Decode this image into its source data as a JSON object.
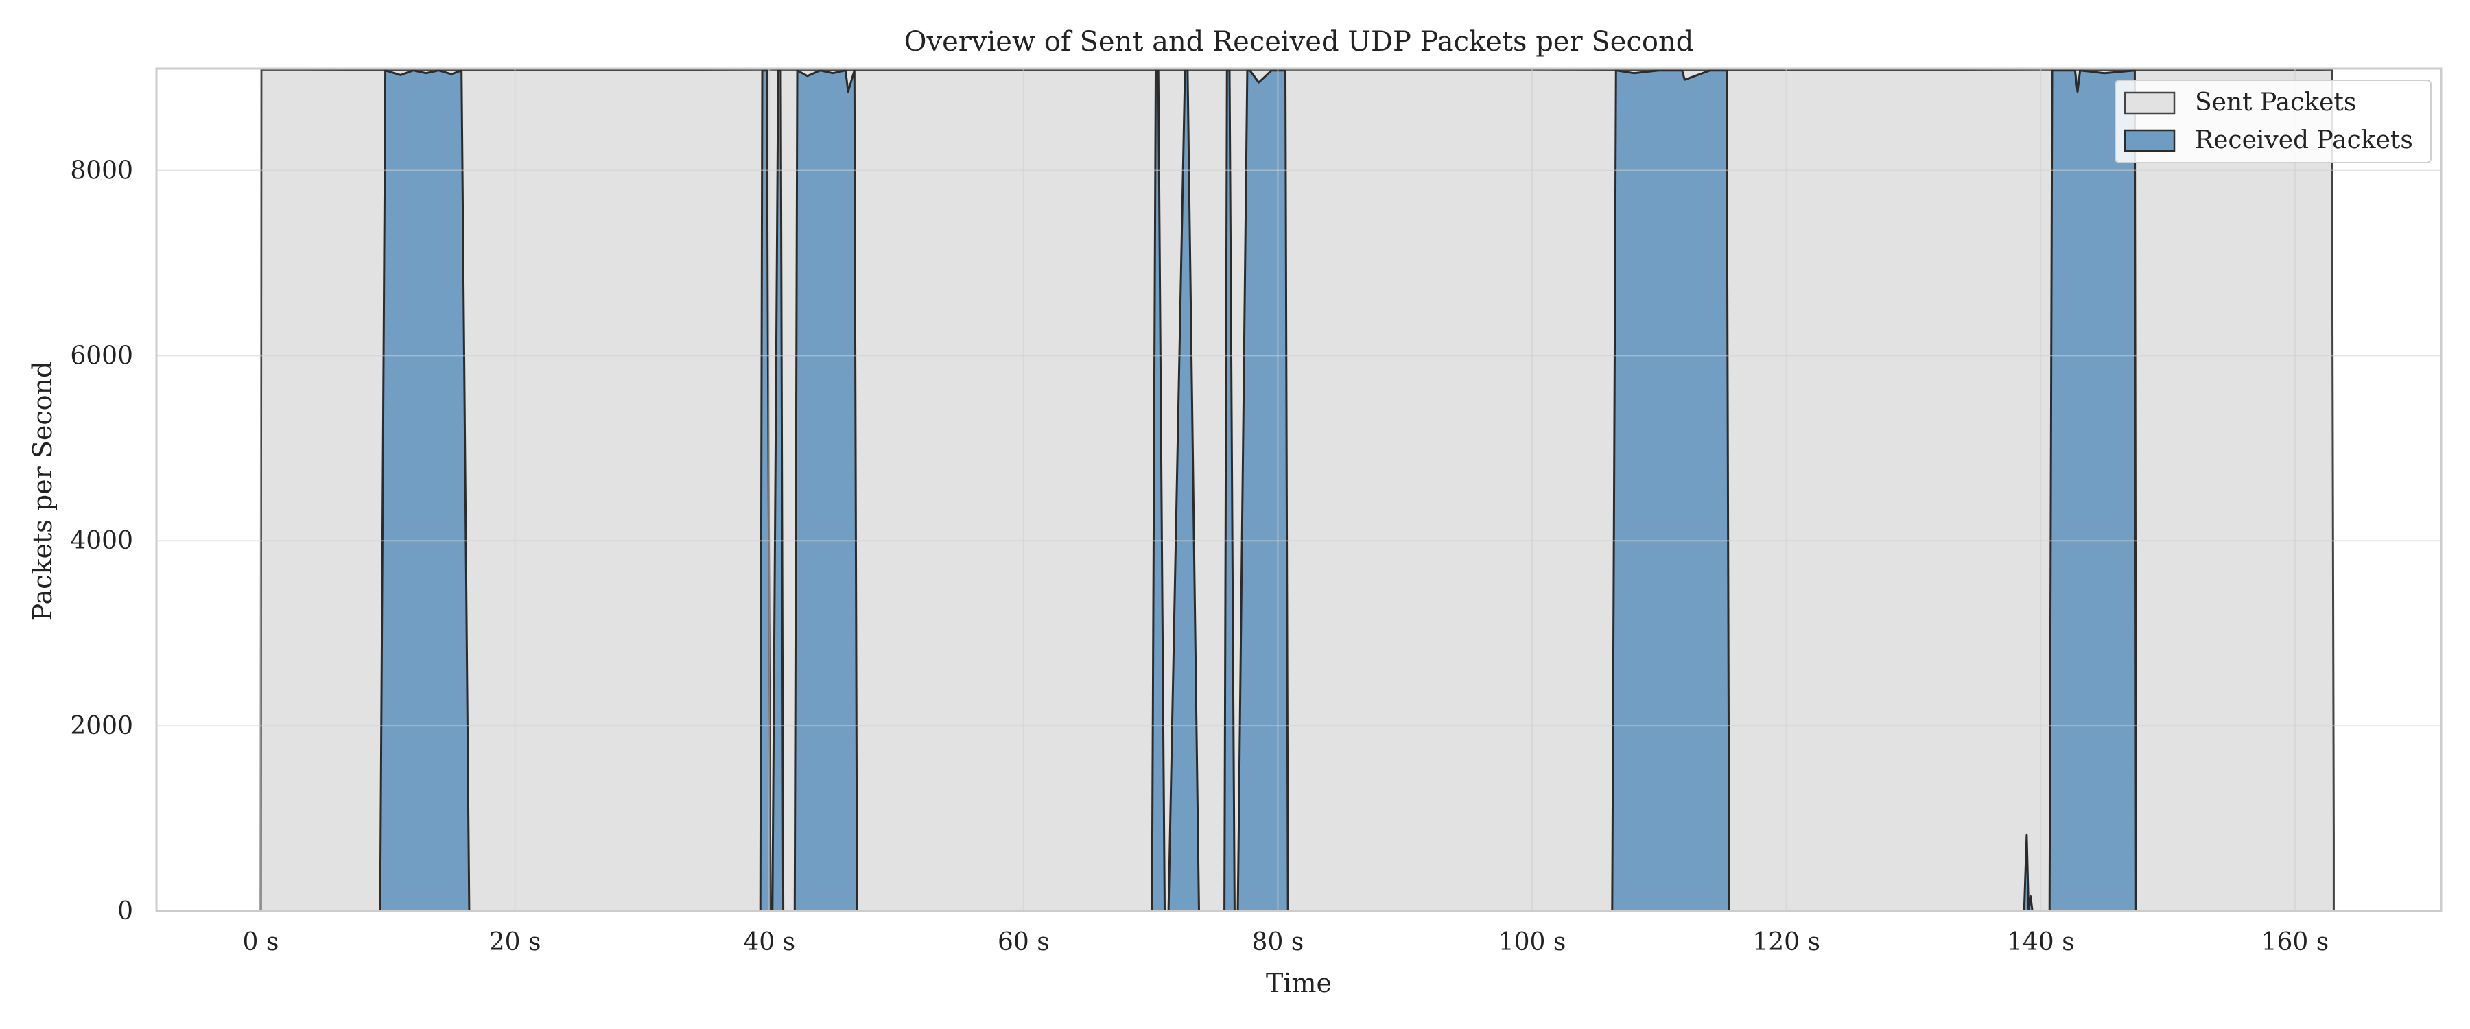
{
  "chart_data": {
    "type": "area",
    "title": "Overview of Sent and Received UDP Packets per Second",
    "xlabel": "Time",
    "ylabel": "Packets per Second",
    "xlim": [
      -8.2,
      171.5
    ],
    "ylim": [
      0,
      9100
    ],
    "xticks": [
      0,
      20,
      40,
      60,
      80,
      100,
      120,
      140,
      160
    ],
    "xtick_labels": [
      "0 s",
      "20 s",
      "40 s",
      "60 s",
      "80 s",
      "100 s",
      "120 s",
      "140 s",
      "160 s"
    ],
    "yticks": [
      0,
      2000,
      4000,
      6000,
      8000
    ],
    "ytick_labels": [
      "0",
      "2000",
      "4000",
      "6000",
      "8000"
    ],
    "grid": true,
    "legend_position": "top-right",
    "series": [
      {
        "name": "Sent Packets",
        "color": "#e2e2e2",
        "edge_color": "#444444",
        "x": [
          0,
          0.05,
          20,
          40,
          60,
          80,
          100,
          120,
          140,
          160,
          162.9,
          163.05
        ],
        "values": [
          0,
          9090,
          9085,
          9090,
          9085,
          9090,
          9090,
          9085,
          9090,
          9085,
          9090,
          800
        ]
      },
      {
        "name": "Received Packets",
        "color": "#6f9cc3",
        "edge_color": "#2b2b2b",
        "x": [
          0,
          9.4,
          9.8,
          11,
          12,
          13,
          14,
          15,
          15.8,
          16.4,
          39.3,
          39.45,
          39.8,
          40.1,
          40.25,
          40.7,
          40.9,
          41.1,
          42.0,
          42.2,
          43,
          44,
          45,
          46,
          46.2,
          46.7,
          46.9,
          70.1,
          70.4,
          70.6,
          71.1,
          71.4,
          72.7,
          72.9,
          73.8,
          75.8,
          76.0,
          76.2,
          76.6,
          76.85,
          77.6,
          77.8,
          78.5,
          79.5,
          80.6,
          80.8,
          106.3,
          106.6,
          108,
          110,
          111.8,
          112,
          114,
          115.3,
          115.5,
          138.7,
          138.9,
          139.05,
          139.2,
          139.35,
          139.5,
          140.7,
          140.9,
          142,
          142.7,
          142.9,
          143.1,
          145,
          147.4,
          147.5,
          163.05
        ],
        "values": [
          0,
          0,
          9080,
          9030,
          9080,
          9050,
          9080,
          9040,
          9080,
          0,
          0,
          9080,
          9080,
          0,
          0,
          9080,
          9080,
          0,
          0,
          9080,
          9020,
          9080,
          9050,
          9080,
          8850,
          9080,
          0,
          0,
          9080,
          9080,
          0,
          0,
          9080,
          9080,
          0,
          0,
          9080,
          9080,
          0,
          0,
          9080,
          9080,
          8950,
          9080,
          9080,
          0,
          0,
          9080,
          9050,
          9080,
          9080,
          8980,
          9080,
          9080,
          0,
          0,
          820,
          0,
          160,
          0,
          0,
          0,
          9080,
          9080,
          9080,
          8850,
          9080,
          9050,
          9080,
          0,
          0
        ]
      }
    ]
  }
}
